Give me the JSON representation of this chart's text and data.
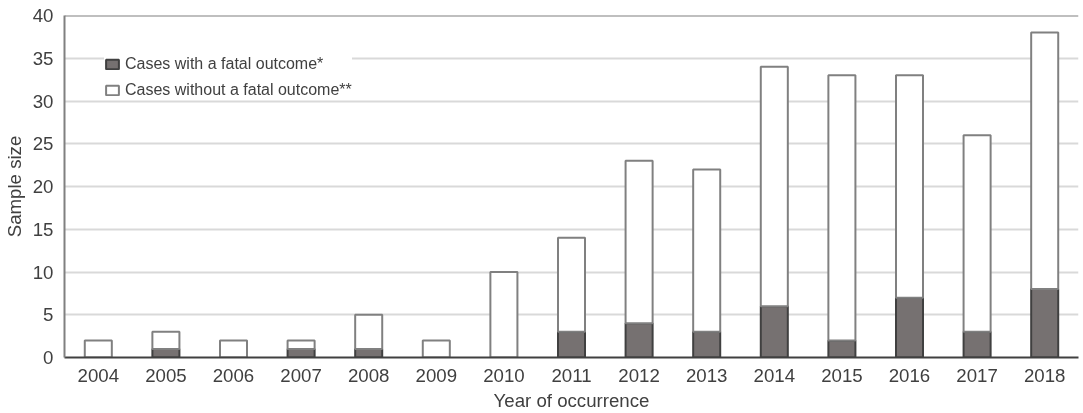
{
  "chart_data": {
    "type": "bar",
    "stacked": true,
    "xlabel": "Year of occurrence",
    "ylabel": "Sample size",
    "categories": [
      "2004",
      "2005",
      "2006",
      "2007",
      "2008",
      "2009",
      "2010",
      "2011",
      "2012",
      "2013",
      "2014",
      "2015",
      "2016",
      "2017",
      "2018"
    ],
    "series": [
      {
        "name": "Cases with a fatal outcome*",
        "color": "#767171",
        "values": [
          0,
          1,
          0,
          1,
          1,
          0,
          0,
          3,
          4,
          3,
          6,
          2,
          7,
          3,
          8
        ]
      },
      {
        "name": "Cases without a fatal outcome**",
        "color": "#ffffff",
        "values": [
          2,
          2,
          2,
          1,
          4,
          2,
          10,
          11,
          19,
          19,
          28,
          31,
          26,
          23,
          30
        ]
      }
    ],
    "ylim": [
      0,
      40
    ],
    "yticks": [
      0,
      5,
      10,
      15,
      20,
      25,
      30,
      35,
      40
    ],
    "grid": "y",
    "legend": "top left"
  }
}
